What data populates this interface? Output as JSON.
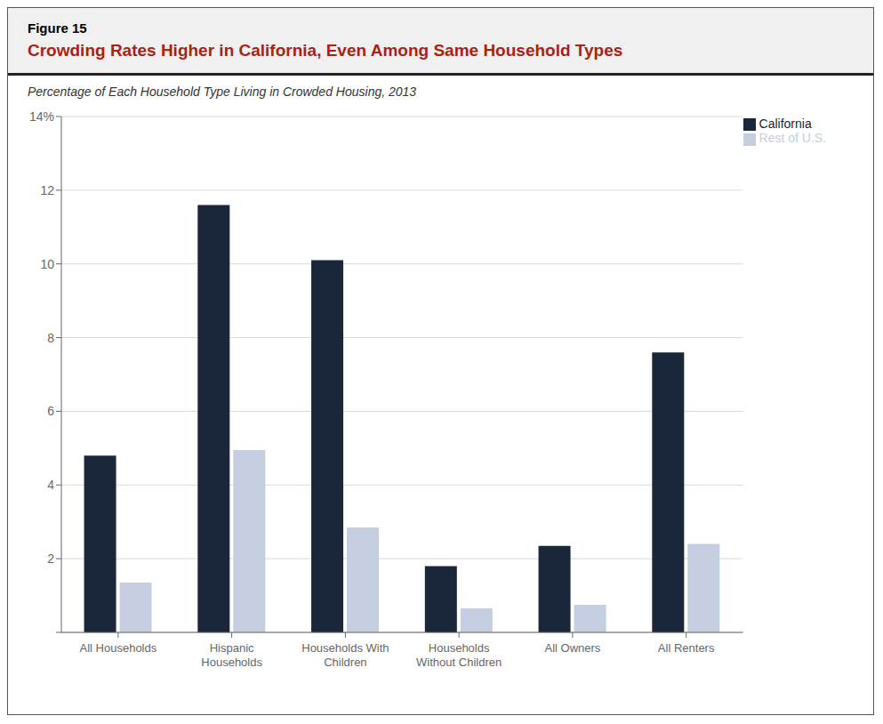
{
  "chart_data": {
    "type": "bar",
    "title": "Crowding Rates Higher in California, Even Among Same Household Types",
    "subtitle": "Percentage of Each Household Type Living in Crowded Housing, 2013",
    "annotations": [
      "Figure 15"
    ],
    "categories": [
      "All Households",
      "Hispanic\nHouseholds",
      "Households With\nChildren",
      "Households\nWithout Children",
      "All Owners",
      "All Renters"
    ],
    "series": [
      {
        "name": "California",
        "color": "#1a2639",
        "values": [
          4.8,
          11.6,
          10.1,
          1.8,
          2.35,
          7.6
        ]
      },
      {
        "name": "Rest of U.S.",
        "color": "#c5cde0",
        "values": [
          1.35,
          4.95,
          2.85,
          0.65,
          0.75,
          2.4
        ]
      }
    ],
    "ylim": [
      0,
      14
    ],
    "yticks": [
      {
        "value": 0,
        "label": ""
      },
      2,
      4,
      6,
      8,
      10,
      12,
      {
        "value": 14,
        "label": "14%"
      }
    ],
    "grid": true,
    "legend": "upper right"
  }
}
